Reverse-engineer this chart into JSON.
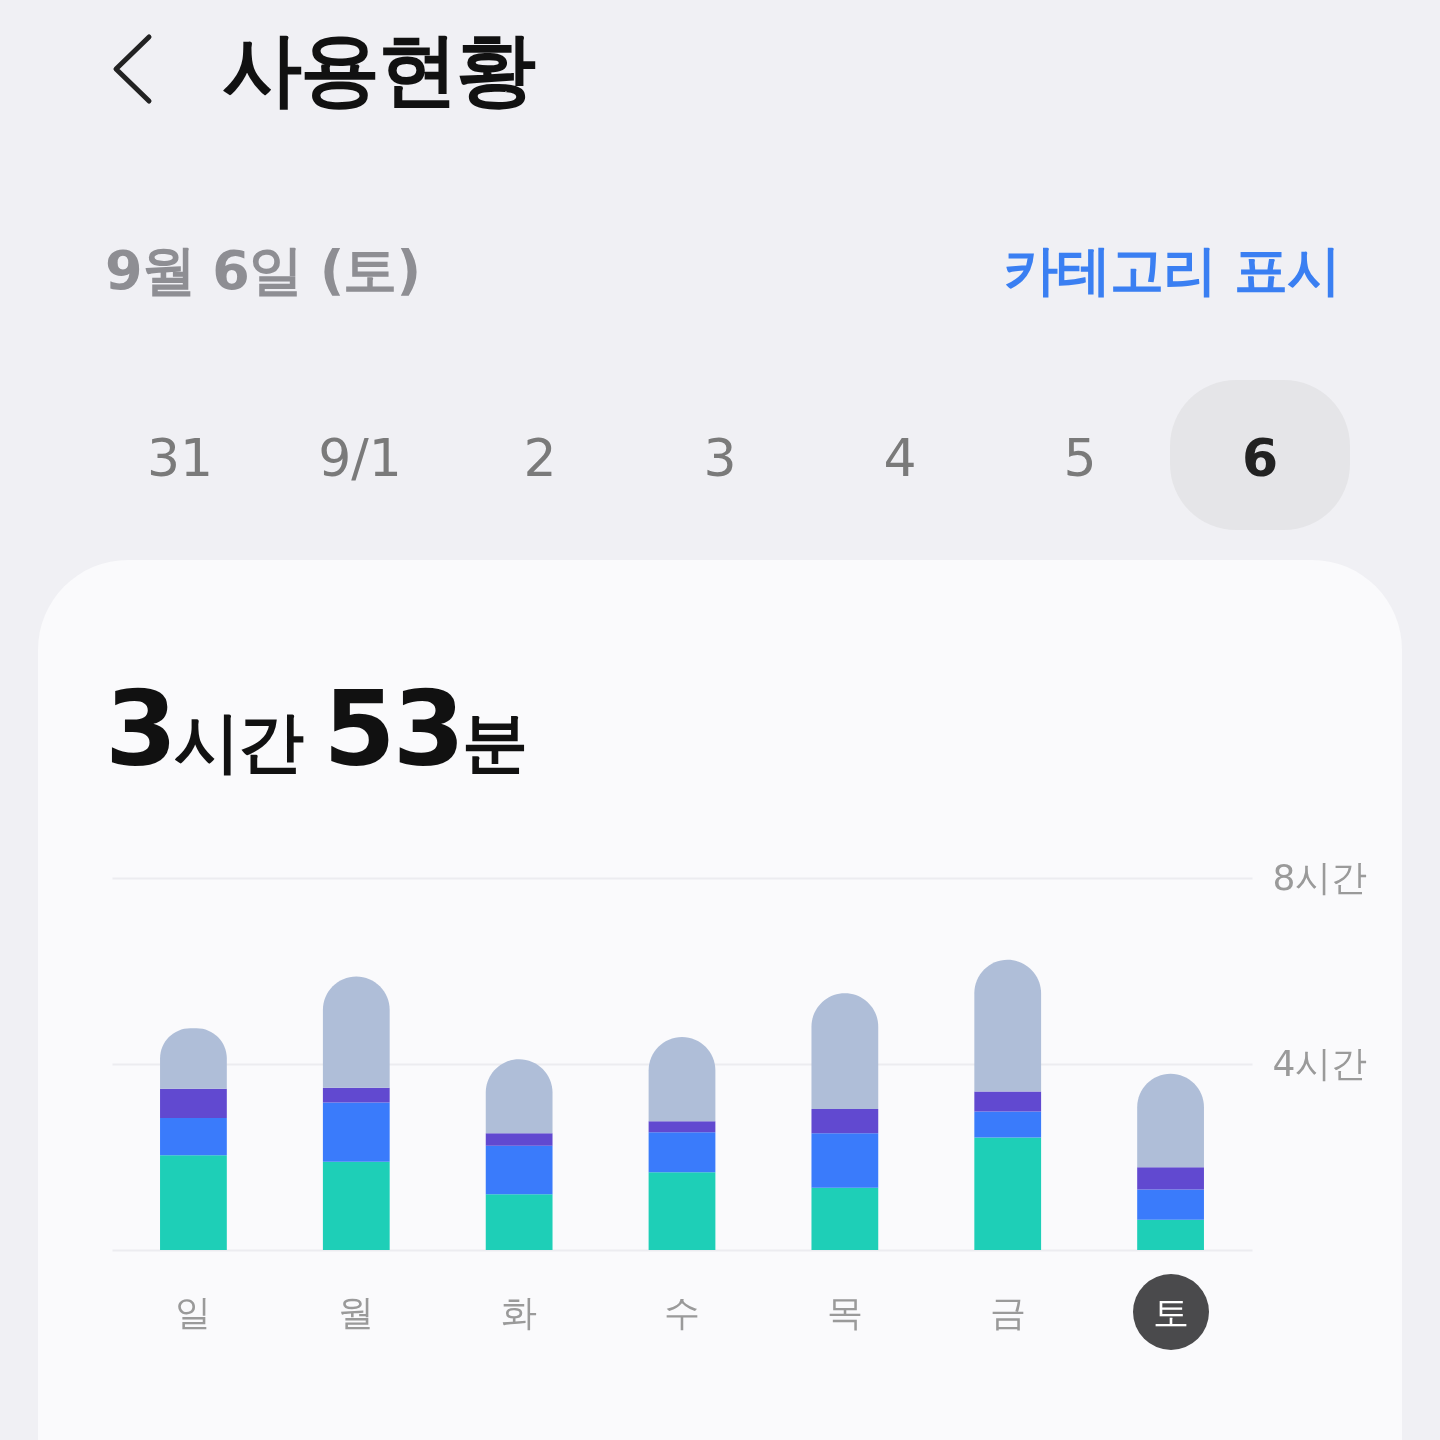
{
  "chart_data": {
    "type": "bar",
    "title": "사용현황",
    "subtitle": "9월 6일 (토)",
    "annotations": [
      "카테고리 표시",
      "31",
      "9/1",
      "2",
      "3",
      "4",
      "5",
      "6",
      "3시간 53분"
    ],
    "categories": [
      "일",
      "월",
      "화",
      "수",
      "목",
      "금",
      "토"
    ],
    "stacked": true,
    "series": [
      {
        "color": "#1ecfb7",
        "values": [
          2.04,
          1.9,
          1.2,
          1.67,
          1.34,
          2.42,
          0.65
        ]
      },
      {
        "color": "#3a7bfb",
        "values": [
          0.8,
          1.27,
          1.04,
          0.86,
          1.17,
          0.56,
          0.65
        ]
      },
      {
        "color": "#6149d0",
        "values": [
          0.63,
          0.32,
          0.27,
          0.24,
          0.52,
          0.43,
          0.48
        ]
      },
      {
        "color": "#afbed8",
        "values": [
          1.3,
          2.39,
          1.59,
          1.81,
          2.49,
          2.83,
          2.01
        ]
      }
    ],
    "ylim": [
      0,
      8
    ],
    "yticks": [
      {
        "value": 0,
        "label": null
      },
      {
        "value": 4,
        "label": "4시간"
      },
      {
        "value": 8,
        "label": "8시간"
      }
    ],
    "grid": "y"
  }
}
